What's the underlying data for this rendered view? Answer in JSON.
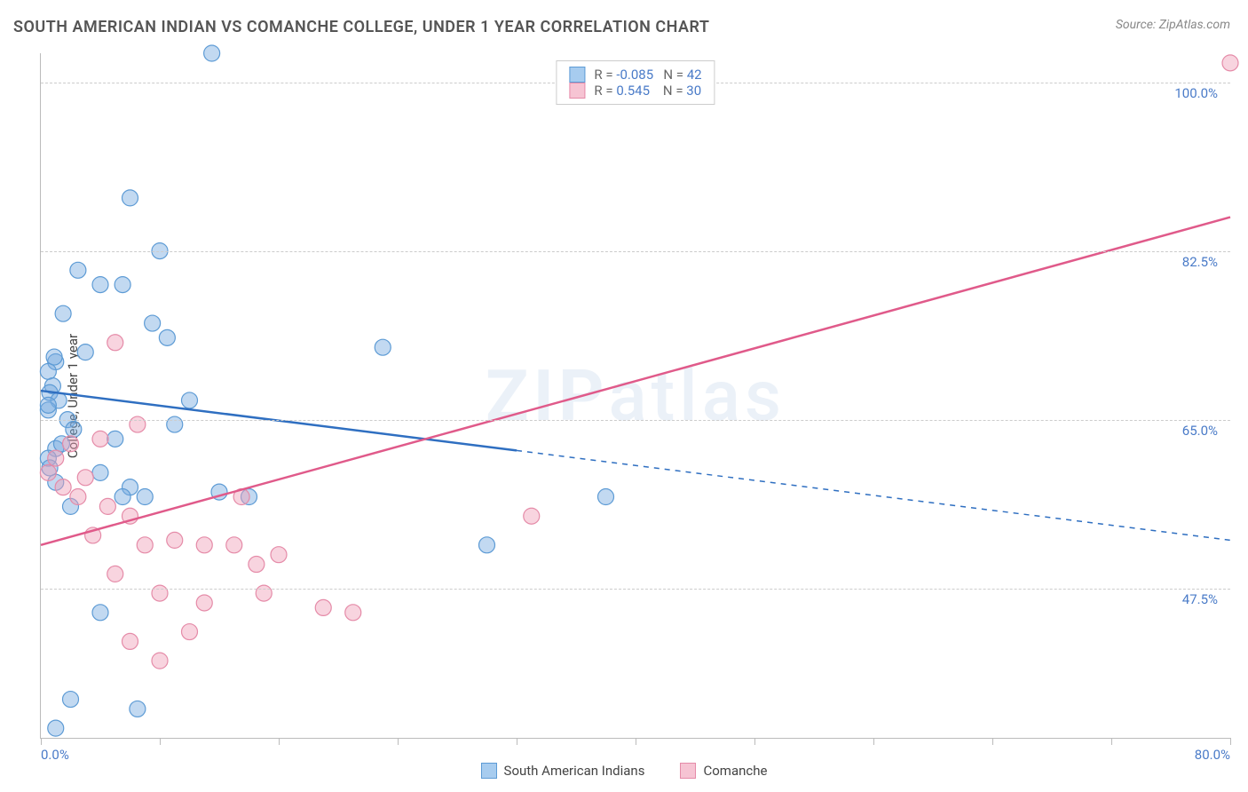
{
  "title": "SOUTH AMERICAN INDIAN VS COMANCHE COLLEGE, UNDER 1 YEAR CORRELATION CHART",
  "source": "Source: ZipAtlas.com",
  "ylabel": "College, Under 1 year",
  "watermark_a": "ZIP",
  "watermark_b": "atlas",
  "chart": {
    "type": "scatter",
    "xmin": 0,
    "xmax": 80,
    "ymin": 32,
    "ymax": 103,
    "xlabel_min": "0.0%",
    "xlabel_max": "80.0%",
    "xtick_step": 8,
    "ygrid": [
      {
        "v": 47.5,
        "label": "47.5%"
      },
      {
        "v": 65.0,
        "label": "65.0%"
      },
      {
        "v": 82.5,
        "label": "82.5%"
      },
      {
        "v": 100.0,
        "label": "100.0%"
      }
    ],
    "series": [
      {
        "name": "South American Indians",
        "color_fill": "rgba(120,170,225,0.45)",
        "color_stroke": "#5d9bd5",
        "swatch_fill": "#a7ccef",
        "swatch_border": "#5d9bd5",
        "R": "-0.085",
        "N": "42",
        "trend": {
          "x1": 0,
          "y1": 68,
          "x2_solid": 32,
          "y2_solid": 61.8,
          "x2": 80,
          "y2": 52.5,
          "color": "#2f6fc1",
          "width": 2.5
        },
        "marker_r": 9,
        "points": [
          [
            11.5,
            103
          ],
          [
            6,
            88
          ],
          [
            8,
            82.5
          ],
          [
            2.5,
            80.5
          ],
          [
            4,
            79
          ],
          [
            5.5,
            79
          ],
          [
            1.5,
            76
          ],
          [
            7.5,
            75
          ],
          [
            8.5,
            73.5
          ],
          [
            3,
            72
          ],
          [
            1,
            71
          ],
          [
            0.5,
            70
          ],
          [
            0.8,
            68.5
          ],
          [
            0.6,
            67.8
          ],
          [
            1.2,
            67
          ],
          [
            0.5,
            66
          ],
          [
            10,
            67
          ],
          [
            23,
            72.5
          ],
          [
            9,
            64.5
          ],
          [
            5,
            63
          ],
          [
            1,
            62
          ],
          [
            0.5,
            61
          ],
          [
            0.6,
            60
          ],
          [
            4,
            59.5
          ],
          [
            6,
            58
          ],
          [
            1,
            58.5
          ],
          [
            5.5,
            57
          ],
          [
            7,
            57
          ],
          [
            2,
            56
          ],
          [
            12,
            57.5
          ],
          [
            14,
            57
          ],
          [
            30,
            52
          ],
          [
            38,
            57
          ],
          [
            4,
            45
          ],
          [
            2,
            36
          ],
          [
            1,
            33
          ],
          [
            0.5,
            66.5
          ],
          [
            1.8,
            65
          ],
          [
            2.2,
            64
          ],
          [
            1.4,
            62.5
          ],
          [
            6.5,
            35
          ],
          [
            0.9,
            71.5
          ]
        ]
      },
      {
        "name": "Comanche",
        "color_fill": "rgba(240,160,185,0.45)",
        "color_stroke": "#e58ba8",
        "swatch_fill": "#f6c4d3",
        "swatch_border": "#e58ba8",
        "R": "0.545",
        "N": "30",
        "trend": {
          "x1": 0,
          "y1": 52,
          "x2_solid": 80,
          "y2_solid": 86,
          "x2": 80,
          "y2": 86,
          "color": "#e05a8a",
          "width": 2.5
        },
        "marker_r": 9,
        "points": [
          [
            80,
            102
          ],
          [
            5,
            73
          ],
          [
            4,
            63
          ],
          [
            2,
            62.5
          ],
          [
            1,
            61
          ],
          [
            0.5,
            59.5
          ],
          [
            6.5,
            64.5
          ],
          [
            3,
            59
          ],
          [
            1.5,
            58
          ],
          [
            2.5,
            57
          ],
          [
            4.5,
            56
          ],
          [
            6,
            55
          ],
          [
            7,
            52
          ],
          [
            9,
            52.5
          ],
          [
            11,
            52
          ],
          [
            13,
            52
          ],
          [
            14.5,
            50
          ],
          [
            16,
            51
          ],
          [
            5,
            49
          ],
          [
            8,
            47
          ],
          [
            11,
            46
          ],
          [
            15,
            47
          ],
          [
            21,
            45
          ],
          [
            19,
            45.5
          ],
          [
            33,
            55
          ],
          [
            13.5,
            57
          ],
          [
            10,
            43
          ],
          [
            6,
            42
          ],
          [
            8,
            40
          ],
          [
            3.5,
            53
          ]
        ]
      }
    ],
    "bottom_legend": [
      {
        "label": "South American Indians",
        "fill": "#a7ccef",
        "border": "#5d9bd5"
      },
      {
        "label": "Comanche",
        "fill": "#f6c4d3",
        "border": "#e58ba8"
      }
    ]
  }
}
